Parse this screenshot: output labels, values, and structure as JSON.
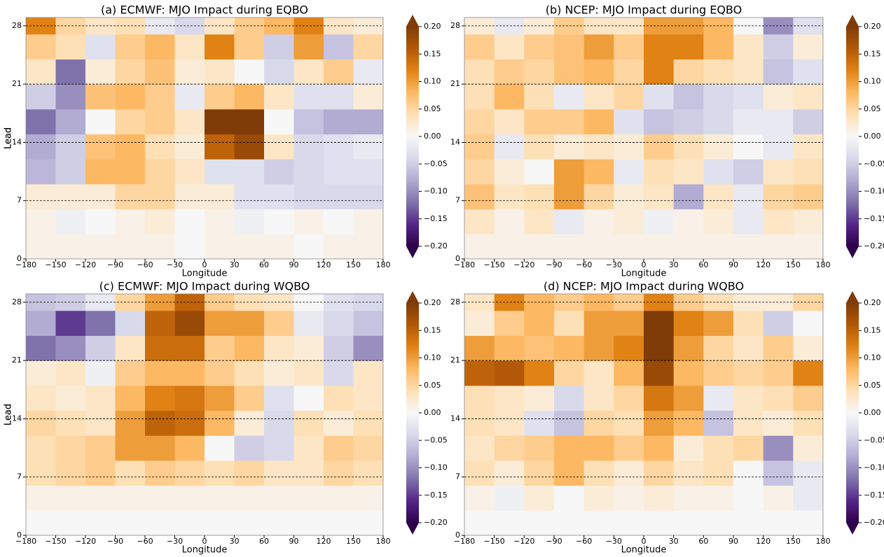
{
  "chart_data": [
    {
      "type": "heatmap",
      "title": "(a) ECMWF: MJO Impact during EQBO",
      "x_label": "Longitude",
      "y_label": "Lead",
      "x": [
        -180,
        -150,
        -120,
        -90,
        -60,
        -30,
        0,
        30,
        60,
        90,
        120,
        150,
        180
      ],
      "y": [
        0,
        3,
        6,
        9,
        12,
        15,
        18,
        21,
        24,
        27,
        29
      ],
      "z": [
        [
          0.01,
          0.01,
          0.01,
          0.01,
          0.01,
          0.0,
          0.01,
          0.01,
          0.01,
          0.0,
          0.01,
          0.01
        ],
        [
          0.01,
          -0.01,
          0.0,
          0.01,
          0.02,
          0.0,
          0.01,
          -0.01,
          0.0,
          0.01,
          0.0,
          0.01
        ],
        [
          0.02,
          0.02,
          0.02,
          0.05,
          0.05,
          0.02,
          0.02,
          -0.03,
          -0.03,
          -0.04,
          -0.04,
          -0.04
        ],
        [
          -0.07,
          -0.05,
          0.08,
          0.08,
          0.05,
          0.03,
          -0.03,
          -0.03,
          -0.05,
          -0.04,
          -0.03,
          -0.03
        ],
        [
          -0.08,
          -0.05,
          0.07,
          0.08,
          0.04,
          0.02,
          0.15,
          0.18,
          0.03,
          -0.04,
          -0.03,
          -0.02
        ],
        [
          -0.12,
          -0.08,
          0.0,
          0.05,
          0.06,
          0.03,
          0.2,
          0.2,
          0.0,
          -0.06,
          -0.08,
          -0.08
        ],
        [
          -0.05,
          -0.1,
          0.07,
          0.08,
          0.06,
          -0.02,
          0.06,
          0.08,
          0.03,
          -0.03,
          -0.03,
          0.02
        ],
        [
          0.03,
          -0.12,
          0.02,
          0.05,
          0.07,
          0.02,
          0.03,
          0.0,
          -0.04,
          0.03,
          0.06,
          -0.02
        ],
        [
          0.06,
          0.04,
          -0.03,
          0.06,
          0.08,
          0.03,
          0.12,
          0.06,
          -0.05,
          0.1,
          -0.06,
          0.05
        ],
        [
          0.12,
          0.05,
          0.03,
          0.04,
          -0.02,
          -0.04,
          0.03,
          0.06,
          0.08,
          0.12,
          0.03,
          0.02
        ]
      ],
      "xlim": [
        -180,
        180
      ],
      "ylim": [
        0,
        29
      ],
      "xticks": [
        {
          "value": -180,
          "label": "−180"
        },
        {
          "value": -150,
          "label": "−150"
        },
        {
          "value": -120,
          "label": "−120"
        },
        {
          "value": -90,
          "label": "−90"
        },
        {
          "value": -60,
          "label": "−60"
        },
        {
          "value": -30,
          "label": "−30"
        },
        0,
        30,
        60,
        90,
        120,
        150,
        180
      ],
      "yticks": [
        0,
        7,
        14,
        21,
        28
      ],
      "hlines": [
        7,
        14,
        21,
        28
      ],
      "colormap": [
        "#2d004b",
        "#542788",
        "#8073ac",
        "#b2abd2",
        "#d8daeb",
        "#f7f7f7",
        "#fee0b6",
        "#fdb863",
        "#e08214",
        "#b35806",
        "#7f3b08"
      ],
      "clim": [
        -0.2,
        0.2
      ],
      "extend": "both",
      "cticks": [
        {
          "value": -0.2,
          "label": "−0.20"
        },
        {
          "value": -0.15,
          "label": "−0.15"
        },
        {
          "value": -0.1,
          "label": "−0.10"
        },
        {
          "value": -0.05,
          "label": "−0.05"
        },
        {
          "value": 0,
          "label": "0.00"
        },
        {
          "value": 0.05,
          "label": "0.05"
        },
        {
          "value": 0.1,
          "label": "0.10"
        },
        {
          "value": 0.15,
          "label": "0.15"
        },
        {
          "value": 0.2,
          "label": "0.20"
        }
      ]
    },
    {
      "type": "heatmap",
      "title": "(b) NCEP: MJO Impact during EQBO",
      "x_label": "Longitude",
      "y_label": "Lead",
      "x": [
        -180,
        -150,
        -120,
        -90,
        -60,
        -30,
        0,
        30,
        60,
        90,
        120,
        150,
        180
      ],
      "y": [
        0,
        3,
        6,
        9,
        12,
        15,
        18,
        21,
        24,
        27,
        29
      ],
      "z": [
        [
          0.01,
          0.01,
          0.01,
          0.01,
          0.01,
          0.01,
          0.01,
          0.01,
          0.01,
          0.01,
          0.01,
          0.01
        ],
        [
          0.03,
          0.01,
          0.03,
          -0.02,
          0.01,
          0.02,
          -0.01,
          0.01,
          0.02,
          -0.02,
          0.03,
          0.02
        ],
        [
          0.07,
          0.03,
          0.04,
          0.1,
          0.05,
          0.02,
          0.03,
          -0.08,
          0.03,
          -0.02,
          0.05,
          0.06
        ],
        [
          0.05,
          0.02,
          0.0,
          0.1,
          0.08,
          -0.02,
          0.04,
          0.03,
          -0.03,
          -0.05,
          0.03,
          0.04
        ],
        [
          0.06,
          -0.02,
          0.04,
          0.02,
          0.03,
          0.02,
          0.06,
          0.04,
          0.02,
          0.0,
          -0.02,
          0.03
        ],
        [
          0.05,
          0.03,
          0.06,
          0.06,
          0.08,
          -0.03,
          -0.06,
          -0.05,
          -0.04,
          -0.02,
          -0.02,
          -0.05
        ],
        [
          0.04,
          0.08,
          0.04,
          -0.02,
          0.03,
          0.05,
          -0.03,
          -0.06,
          -0.04,
          -0.03,
          0.02,
          0.03
        ],
        [
          0.04,
          0.06,
          0.05,
          0.07,
          0.08,
          0.05,
          0.12,
          0.05,
          0.04,
          0.03,
          -0.06,
          -0.03
        ],
        [
          0.06,
          0.03,
          0.06,
          0.07,
          0.1,
          0.06,
          0.12,
          0.12,
          0.08,
          0.03,
          -0.05,
          0.02
        ],
        [
          0.02,
          -0.02,
          0.02,
          0.06,
          0.03,
          0.03,
          0.1,
          0.1,
          0.08,
          0.0,
          -0.1,
          -0.03
        ]
      ],
      "xlim": [
        -180,
        180
      ],
      "ylim": [
        0,
        29
      ],
      "xticks": [
        {
          "value": -180,
          "label": "−180"
        },
        {
          "value": -150,
          "label": "−150"
        },
        {
          "value": -120,
          "label": "−120"
        },
        {
          "value": -90,
          "label": "−90"
        },
        {
          "value": -60,
          "label": "−60"
        },
        {
          "value": -30,
          "label": "−30"
        },
        0,
        30,
        60,
        90,
        120,
        150,
        180
      ],
      "yticks": [
        0,
        7,
        14,
        21,
        28
      ],
      "hlines": [
        7,
        14,
        21,
        28
      ],
      "colormap": [
        "#2d004b",
        "#542788",
        "#8073ac",
        "#b2abd2",
        "#d8daeb",
        "#f7f7f7",
        "#fee0b6",
        "#fdb863",
        "#e08214",
        "#b35806",
        "#7f3b08"
      ],
      "clim": [
        -0.2,
        0.2
      ],
      "extend": "both",
      "cticks": [
        {
          "value": -0.2,
          "label": "−0.20"
        },
        {
          "value": -0.15,
          "label": "−0.15"
        },
        {
          "value": -0.1,
          "label": "−0.10"
        },
        {
          "value": -0.05,
          "label": "−0.05"
        },
        {
          "value": 0,
          "label": "0.00"
        },
        {
          "value": 0.05,
          "label": "0.05"
        },
        {
          "value": 0.1,
          "label": "0.10"
        },
        {
          "value": 0.15,
          "label": "0.15"
        },
        {
          "value": 0.2,
          "label": "0.20"
        }
      ]
    },
    {
      "type": "heatmap",
      "title": "(c) ECMWF: MJO Impact during WQBO",
      "x_label": "Longitude",
      "y_label": "Lead",
      "x": [
        -180,
        -150,
        -120,
        -90,
        -60,
        -30,
        0,
        30,
        60,
        90,
        120,
        150,
        180
      ],
      "y": [
        0,
        3,
        6,
        9,
        12,
        15,
        18,
        21,
        24,
        27,
        29
      ],
      "z": [
        [
          0.0,
          0.0,
          0.0,
          0.0,
          0.0,
          0.0,
          0.0,
          0.0,
          0.0,
          0.0,
          0.0,
          0.0
        ],
        [
          0.01,
          0.01,
          0.01,
          0.01,
          0.01,
          0.01,
          0.01,
          0.01,
          0.01,
          0.01,
          0.01,
          0.01
        ],
        [
          0.04,
          0.05,
          0.06,
          0.04,
          0.06,
          0.05,
          0.04,
          0.05,
          0.03,
          0.03,
          0.05,
          0.04
        ],
        [
          0.04,
          0.05,
          0.06,
          0.1,
          0.1,
          0.08,
          0.0,
          -0.05,
          -0.04,
          0.03,
          0.06,
          0.05
        ],
        [
          0.05,
          0.04,
          0.03,
          0.1,
          0.15,
          0.14,
          0.08,
          0.02,
          -0.04,
          0.04,
          0.02,
          0.04
        ],
        [
          0.03,
          0.02,
          0.03,
          0.08,
          0.12,
          0.13,
          0.1,
          0.06,
          -0.03,
          0.0,
          0.04,
          0.03
        ],
        [
          0.02,
          0.03,
          -0.01,
          0.06,
          0.08,
          0.08,
          0.06,
          0.04,
          0.02,
          0.03,
          -0.04,
          0.03
        ],
        [
          -0.12,
          -0.1,
          -0.05,
          0.03,
          0.14,
          0.14,
          0.06,
          0.08,
          0.03,
          0.02,
          -0.05,
          -0.1
        ],
        [
          -0.08,
          -0.15,
          -0.12,
          -0.04,
          0.15,
          0.18,
          0.1,
          0.1,
          0.06,
          -0.02,
          -0.04,
          -0.06
        ],
        [
          -0.06,
          -0.05,
          -0.02,
          0.05,
          0.1,
          0.15,
          0.06,
          0.04,
          0.03,
          0.0,
          -0.03,
          -0.04
        ]
      ],
      "xlim": [
        -180,
        180
      ],
      "ylim": [
        0,
        29
      ],
      "xticks": [
        {
          "value": -180,
          "label": "−180"
        },
        {
          "value": -150,
          "label": "−150"
        },
        {
          "value": -120,
          "label": "−120"
        },
        {
          "value": -90,
          "label": "−90"
        },
        {
          "value": -60,
          "label": "−60"
        },
        {
          "value": -30,
          "label": "−30"
        },
        0,
        30,
        60,
        90,
        120,
        150,
        180
      ],
      "yticks": [
        0,
        7,
        14,
        21,
        28
      ],
      "hlines": [
        7,
        14,
        21,
        28
      ],
      "colormap": [
        "#2d004b",
        "#542788",
        "#8073ac",
        "#b2abd2",
        "#d8daeb",
        "#f7f7f7",
        "#fee0b6",
        "#fdb863",
        "#e08214",
        "#b35806",
        "#7f3b08"
      ],
      "clim": [
        -0.2,
        0.2
      ],
      "extend": "both",
      "cticks": [
        {
          "value": -0.2,
          "label": "−0.20"
        },
        {
          "value": -0.15,
          "label": "−0.15"
        },
        {
          "value": -0.1,
          "label": "−0.10"
        },
        {
          "value": -0.05,
          "label": "−0.05"
        },
        {
          "value": 0,
          "label": "0.00"
        },
        {
          "value": 0.05,
          "label": "0.05"
        },
        {
          "value": 0.1,
          "label": "0.10"
        },
        {
          "value": 0.15,
          "label": "0.15"
        },
        {
          "value": 0.2,
          "label": "0.20"
        }
      ]
    },
    {
      "type": "heatmap",
      "title": "(d) NCEP: MJO Impact during WQBO",
      "x_label": "Longitude",
      "y_label": "Lead",
      "x": [
        -180,
        -150,
        -120,
        -90,
        -60,
        -30,
        0,
        30,
        60,
        90,
        120,
        150,
        180
      ],
      "y": [
        0,
        3,
        6,
        9,
        12,
        15,
        18,
        21,
        24,
        27,
        29
      ],
      "z": [
        [
          0.0,
          0.0,
          0.0,
          0.0,
          0.0,
          0.0,
          0.0,
          0.0,
          0.0,
          0.0,
          0.0,
          0.0
        ],
        [
          0.01,
          -0.01,
          0.02,
          0.0,
          0.02,
          0.01,
          0.02,
          0.01,
          0.01,
          0.0,
          0.01,
          -0.02
        ],
        [
          0.04,
          0.02,
          0.05,
          0.08,
          0.04,
          0.02,
          0.05,
          0.03,
          0.04,
          0.0,
          -0.06,
          -0.02
        ],
        [
          0.03,
          0.05,
          0.06,
          0.08,
          0.08,
          0.06,
          0.08,
          0.02,
          0.04,
          0.05,
          -0.1,
          0.02
        ],
        [
          0.04,
          0.03,
          -0.03,
          -0.06,
          0.05,
          0.04,
          0.1,
          0.08,
          -0.06,
          0.03,
          0.02,
          0.04
        ],
        [
          0.04,
          0.03,
          0.02,
          -0.04,
          0.03,
          0.05,
          0.13,
          0.1,
          -0.02,
          0.03,
          0.04,
          0.06
        ],
        [
          0.15,
          0.16,
          0.12,
          0.05,
          0.03,
          0.08,
          0.18,
          0.08,
          0.06,
          0.05,
          0.06,
          0.12
        ],
        [
          0.1,
          0.08,
          0.07,
          0.08,
          0.1,
          0.12,
          0.2,
          0.1,
          0.05,
          0.03,
          0.06,
          0.02
        ],
        [
          0.02,
          0.06,
          0.08,
          0.04,
          0.1,
          0.1,
          0.2,
          0.12,
          0.1,
          0.04,
          -0.05,
          0.0
        ],
        [
          0.03,
          0.12,
          0.08,
          0.06,
          0.08,
          0.06,
          0.12,
          0.06,
          0.04,
          0.02,
          0.02,
          0.05
        ]
      ],
      "xlim": [
        -180,
        180
      ],
      "ylim": [
        0,
        29
      ],
      "xticks": [
        {
          "value": -180,
          "label": "−180"
        },
        {
          "value": -150,
          "label": "−150"
        },
        {
          "value": -120,
          "label": "−120"
        },
        {
          "value": -90,
          "label": "−90"
        },
        {
          "value": -60,
          "label": "−60"
        },
        {
          "value": -30,
          "label": "−30"
        },
        0,
        30,
        60,
        90,
        120,
        150,
        180
      ],
      "yticks": [
        0,
        7,
        14,
        21,
        28
      ],
      "hlines": [
        7,
        14,
        21,
        28
      ],
      "colormap": [
        "#2d004b",
        "#542788",
        "#8073ac",
        "#b2abd2",
        "#d8daeb",
        "#f7f7f7",
        "#fee0b6",
        "#fdb863",
        "#e08214",
        "#b35806",
        "#7f3b08"
      ],
      "clim": [
        -0.2,
        0.2
      ],
      "extend": "both",
      "cticks": [
        {
          "value": -0.2,
          "label": "−0.20"
        },
        {
          "value": -0.15,
          "label": "−0.15"
        },
        {
          "value": -0.1,
          "label": "−0.10"
        },
        {
          "value": -0.05,
          "label": "−0.05"
        },
        {
          "value": 0,
          "label": "0.00"
        },
        {
          "value": 0.05,
          "label": "0.05"
        },
        {
          "value": 0.1,
          "label": "0.10"
        },
        {
          "value": 0.15,
          "label": "0.15"
        },
        {
          "value": 0.2,
          "label": "0.20"
        }
      ]
    }
  ]
}
